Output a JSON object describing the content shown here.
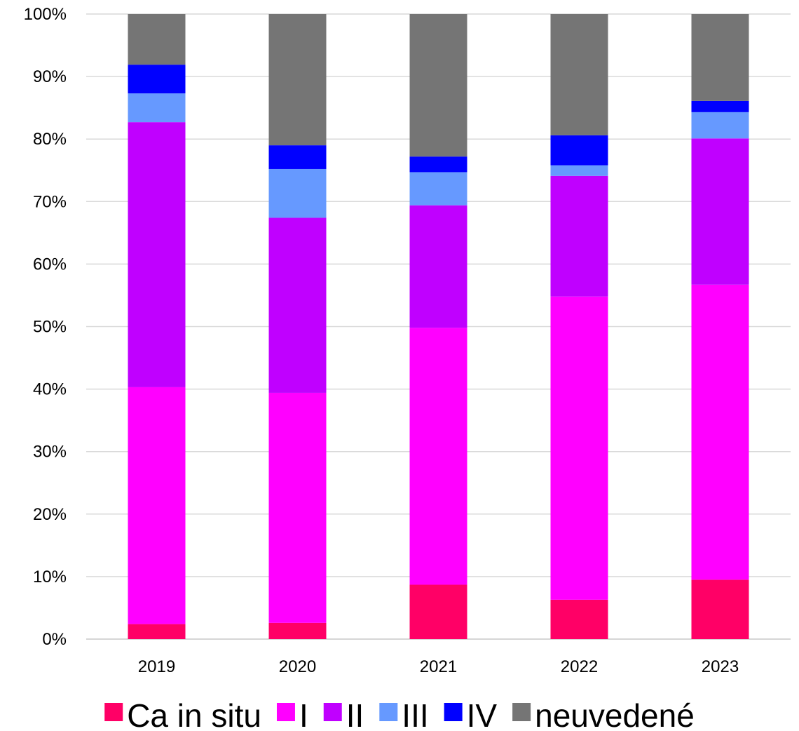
{
  "chart_data": {
    "type": "bar",
    "stacked": true,
    "percent": true,
    "title": "",
    "xlabel": "",
    "ylabel": "",
    "ylim": [
      0,
      100
    ],
    "y_ticks": [
      "0%",
      "10%",
      "20%",
      "30%",
      "40%",
      "50%",
      "60%",
      "70%",
      "80%",
      "90%",
      "100%"
    ],
    "grid": true,
    "legend_position": "bottom",
    "categories": [
      "2019",
      "2020",
      "2021",
      "2022",
      "2023"
    ],
    "series": [
      {
        "name": "Ca in situ",
        "color": "#ff0066",
        "values": [
          2.4,
          2.6,
          8.7,
          6.3,
          9.5
        ]
      },
      {
        "name": "I",
        "color": "#ff00ff",
        "values": [
          37.9,
          36.8,
          41.1,
          48.5,
          47.2
        ]
      },
      {
        "name": "II",
        "color": "#c000ff",
        "values": [
          42.4,
          28.0,
          19.6,
          19.3,
          23.4
        ]
      },
      {
        "name": "III",
        "color": "#6699ff",
        "values": [
          4.6,
          7.8,
          5.3,
          1.7,
          4.2
        ]
      },
      {
        "name": "IV",
        "color": "#0000ff",
        "values": [
          4.6,
          3.8,
          2.5,
          4.8,
          1.8
        ]
      },
      {
        "name": "neuvedené",
        "color": "#757575",
        "values": [
          8.1,
          21.0,
          22.8,
          19.4,
          13.9
        ]
      }
    ]
  }
}
